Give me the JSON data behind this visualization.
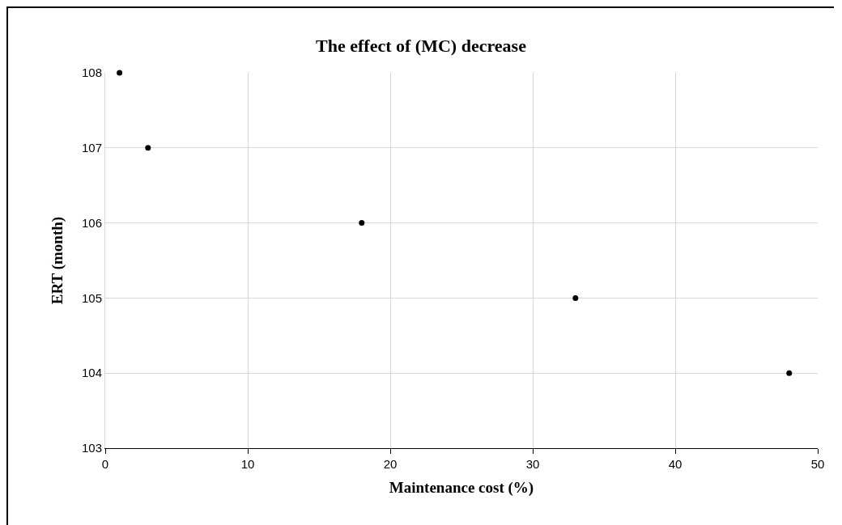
{
  "chart_data": {
    "type": "scatter",
    "title": "The effect of (MC) decrease",
    "xlabel": "Maintenance cost (%)",
    "ylabel": "ERT (month)",
    "x": [
      1,
      3,
      18,
      33,
      48
    ],
    "values": [
      108,
      107,
      106,
      105,
      104
    ],
    "color": "#000000",
    "marker": "circle",
    "grid": true,
    "xlim": [
      0,
      50
    ],
    "xticks": [
      0,
      10,
      20,
      30,
      40,
      50
    ],
    "ylim": [
      103,
      108
    ],
    "yticks": [
      103,
      104,
      105,
      106,
      107,
      108
    ]
  }
}
